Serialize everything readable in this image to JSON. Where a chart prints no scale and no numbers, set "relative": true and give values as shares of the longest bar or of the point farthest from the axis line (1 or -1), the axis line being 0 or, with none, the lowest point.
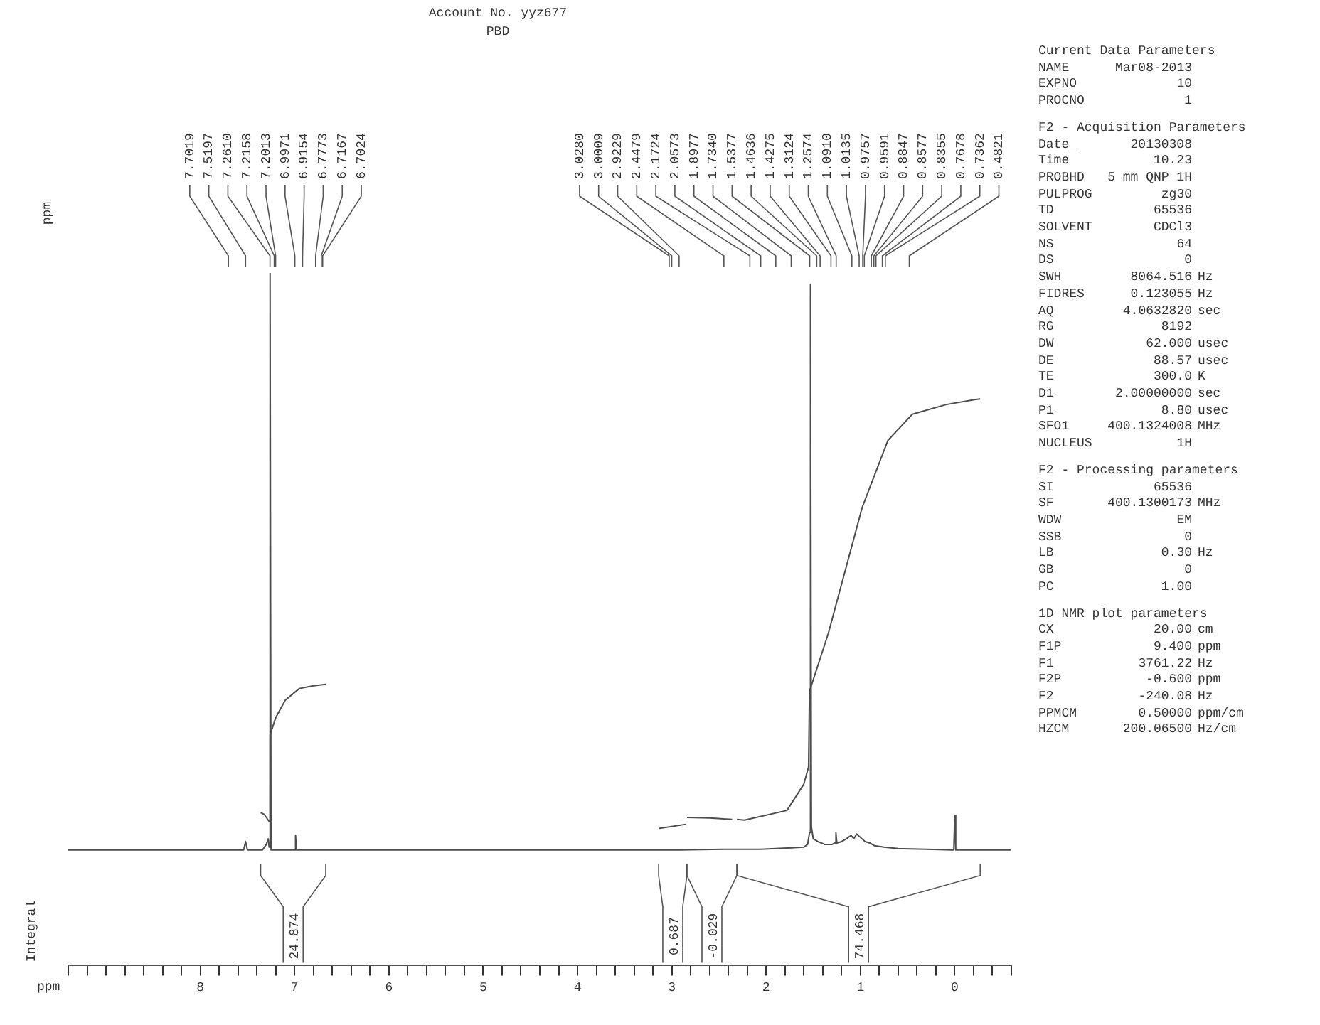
{
  "chart_data": [
    {
      "type": "line",
      "title": "Account No. yyz677",
      "subtitle": "PBD",
      "xlabel": "ppm",
      "relative": true,
      "marker": "none",
      "line_style": "solid",
      "xlim": [
        9.4,
        -0.6
      ],
      "xticks": [
        {
          "value": 9.4,
          "label": null
        },
        {
          "value": 9.2,
          "label": null
        },
        {
          "value": 9,
          "label": null
        },
        {
          "value": 8.8,
          "label": null
        },
        {
          "value": 8.6,
          "label": null
        },
        {
          "value": 8.4,
          "label": null
        },
        {
          "value": 8.2,
          "label": null
        },
        8,
        {
          "value": 7.8,
          "label": null
        },
        {
          "value": 7.6,
          "label": null
        },
        {
          "value": 7.4,
          "label": null
        },
        {
          "value": 7.2,
          "label": null
        },
        7,
        {
          "value": 6.8,
          "label": null
        },
        {
          "value": 6.6,
          "label": null
        },
        {
          "value": 6.4,
          "label": null
        },
        {
          "value": 6.2,
          "label": null
        },
        6,
        {
          "value": 5.8,
          "label": null
        },
        {
          "value": 5.6,
          "label": null
        },
        {
          "value": 5.4,
          "label": null
        },
        {
          "value": 5.2,
          "label": null
        },
        5,
        {
          "value": 4.8,
          "label": null
        },
        {
          "value": 4.6,
          "label": null
        },
        {
          "value": 4.4,
          "label": null
        },
        {
          "value": 4.2,
          "label": null
        },
        4,
        {
          "value": 3.8,
          "label": null
        },
        {
          "value": 3.6,
          "label": null
        },
        {
          "value": 3.4,
          "label": null
        },
        {
          "value": 3.2,
          "label": null
        },
        3,
        {
          "value": 2.8,
          "label": null
        },
        {
          "value": 2.6,
          "label": null
        },
        {
          "value": 2.4,
          "label": null
        },
        {
          "value": 2.2,
          "label": null
        },
        2,
        {
          "value": 1.8,
          "label": null
        },
        {
          "value": 1.6,
          "label": null
        },
        {
          "value": 1.4,
          "label": null
        },
        {
          "value": 1.2,
          "label": null
        },
        1,
        {
          "value": 0.8,
          "label": null
        },
        {
          "value": 0.6,
          "label": null
        },
        {
          "value": 0.4,
          "label": null
        },
        {
          "value": 0.2,
          "label": null
        },
        0,
        {
          "value": -0.2,
          "label": null
        },
        {
          "value": -0.4,
          "label": null
        },
        {
          "value": -0.6,
          "label": null
        }
      ],
      "series": [
        {
          "color": "#4d4d4d",
          "x": [
            9.4,
            7.7019,
            7.6,
            7.54,
            7.52,
            7.5,
            7.34,
            7.3,
            7.28,
            7.27,
            7.26,
            7.25,
            7.22,
            7.15,
            7.05,
            7.0,
            6.99,
            6.98,
            6.7167,
            6.5,
            3.0,
            2.9229,
            2.4479,
            2.1724,
            2.0573,
            1.8977,
            1.734,
            1.6,
            1.56,
            1.54,
            1.53,
            1.52,
            1.5,
            1.45,
            1.38,
            1.3,
            1.27,
            1.26,
            1.25,
            1.2,
            1.15,
            1.1,
            1.07,
            1.04,
            1.0,
            0.95,
            0.9,
            0.85,
            0.75,
            0.6,
            0.3,
            0.03,
            0.01,
            0.0,
            -0.01,
            -0.03,
            -0.6
          ],
          "values": [
            0.167,
            0.167,
            0.167,
            0.167,
            0.179,
            0.167,
            0.167,
            0.175,
            0.183,
            0.171,
            1,
            0.167,
            0.167,
            0.167,
            0.167,
            0.167,
            0.188,
            0.167,
            0.167,
            0.167,
            0.167,
            0.167,
            0.168,
            0.168,
            0.168,
            0.169,
            0.17,
            0.171,
            0.175,
            0.192,
            0.983,
            0.2,
            0.183,
            0.179,
            0.175,
            0.175,
            0.177,
            0.192,
            0.177,
            0.179,
            0.183,
            0.188,
            0.183,
            0.19,
            0.185,
            0.179,
            0.177,
            0.173,
            0.171,
            0.169,
            0.168,
            0.167,
            0.167,
            0.217,
            0.167,
            0.167,
            0.167
          ]
        },
        {
          "color": "#4d4d4d",
          "x": [
            7.36,
            7.32,
            7.27,
            7.26,
            7.2,
            7.1,
            6.95,
            6.8,
            6.67
          ],
          "values": [
            0.221,
            0.218,
            0.208,
            0.333,
            0.358,
            0.383,
            0.4,
            0.404,
            0.406
          ]
        },
        {
          "color": "#4d4d4d",
          "x": [
            3.14,
            2.85
          ],
          "values": [
            0.198,
            0.204
          ]
        },
        {
          "color": "#4d4d4d",
          "x": [
            2.84,
            2.6,
            2.36
          ],
          "values": [
            0.214,
            0.213,
            0.211
          ]
        },
        {
          "color": "#4d4d4d",
          "x": [
            2.31,
            2.23,
            1.78,
            1.6,
            1.55,
            1.54,
            1.34,
            0.98,
            0.71,
            0.45,
            0.09,
            -0.21,
            -0.27
          ],
          "values": [
            0.211,
            0.21,
            0.224,
            0.262,
            0.287,
            0.396,
            0.48,
            0.662,
            0.758,
            0.796,
            0.81,
            0.817,
            0.818
          ]
        }
      ],
      "annotations": [
        "ppm",
        "Integral",
        "24.874",
        "0.687",
        "-0.029",
        "74.468",
        {
          "text": "7.7019",
          "x": 7.7019
        },
        {
          "text": "7.5197",
          "x": 7.5197
        },
        {
          "text": "7.2610",
          "x": 7.261
        },
        {
          "text": "7.2158",
          "x": 7.2158
        },
        {
          "text": "7.2013",
          "x": 7.2013
        },
        {
          "text": "6.9971",
          "x": 6.9971
        },
        {
          "text": "6.9154",
          "x": 6.9154
        },
        {
          "text": "6.7773",
          "x": 6.7773
        },
        {
          "text": "6.7167",
          "x": 6.7167
        },
        {
          "text": "6.7024",
          "x": 6.7024
        },
        {
          "text": "3.0280",
          "x": 3.028
        },
        {
          "text": "3.0009",
          "x": 3.0009
        },
        {
          "text": "2.9229",
          "x": 2.9229
        },
        {
          "text": "2.4479",
          "x": 2.4479
        },
        {
          "text": "2.1724",
          "x": 2.1724
        },
        {
          "text": "2.0573",
          "x": 2.0573
        },
        {
          "text": "1.8977",
          "x": 1.8977
        },
        {
          "text": "1.7340",
          "x": 1.734
        },
        {
          "text": "1.5377",
          "x": 1.5377
        },
        {
          "text": "1.4636",
          "x": 1.4636
        },
        {
          "text": "1.4275",
          "x": 1.4275
        },
        {
          "text": "1.3124",
          "x": 1.3124
        },
        {
          "text": "1.2574",
          "x": 1.2574
        },
        {
          "text": "1.0910",
          "x": 1.091
        },
        {
          "text": "1.0135",
          "x": 1.0135
        },
        {
          "text": "0.9757",
          "x": 0.9757
        },
        {
          "text": "0.9591",
          "x": 0.9591
        },
        {
          "text": "0.8847",
          "x": 0.8847
        },
        {
          "text": "0.8577",
          "x": 0.8577
        },
        {
          "text": "0.8355",
          "x": 0.8355
        },
        {
          "text": "0.7678",
          "x": 0.7678
        },
        {
          "text": "0.7362",
          "x": 0.7362
        },
        {
          "text": "0.4821",
          "x": 0.4821
        }
      ]
    },
    {
      "type": "other",
      "annotations": [
        "Current Data Parameters",
        "NAME  Mar08-2013",
        "EXPNO  10",
        "PROCNO  1",
        "F2 - Acquisition Parameters",
        "Date_  20130308",
        "Time  10.23",
        "PROBHD  5 mm QNP 1H",
        "PULPROG  zg30",
        "TD  65536",
        "SOLVENT  CDCl3",
        "NS  64",
        "DS  0",
        "SWH  8064.516  Hz",
        "FIDRES  0.123055  Hz",
        "AQ  4.0632820  sec",
        "RG  8192",
        "DW  62.000  usec",
        "DE  88.57  usec",
        "TE  300.0  K",
        "D1  2.00000000  sec",
        "P1  8.80  usec",
        "SFO1  400.1324008  MHz",
        "NUCLEUS  1H",
        "F2 - Processing parameters",
        "SI  65536",
        "SF  400.1300173  MHz",
        "WDW  EM",
        "SSB  0",
        "LB  0.30  Hz",
        "GB  0",
        "PC  1.00",
        "1D NMR plot parameters",
        "CX  20.00  cm",
        "F1P  9.400  ppm",
        "F1  3761.22  Hz",
        "F2P  -0.600  ppm",
        "F2  -240.08  Hz",
        "PPMCM  0.50000  ppm/cm",
        "HZCM  200.06500  Hz/cm"
      ]
    }
  ]
}
